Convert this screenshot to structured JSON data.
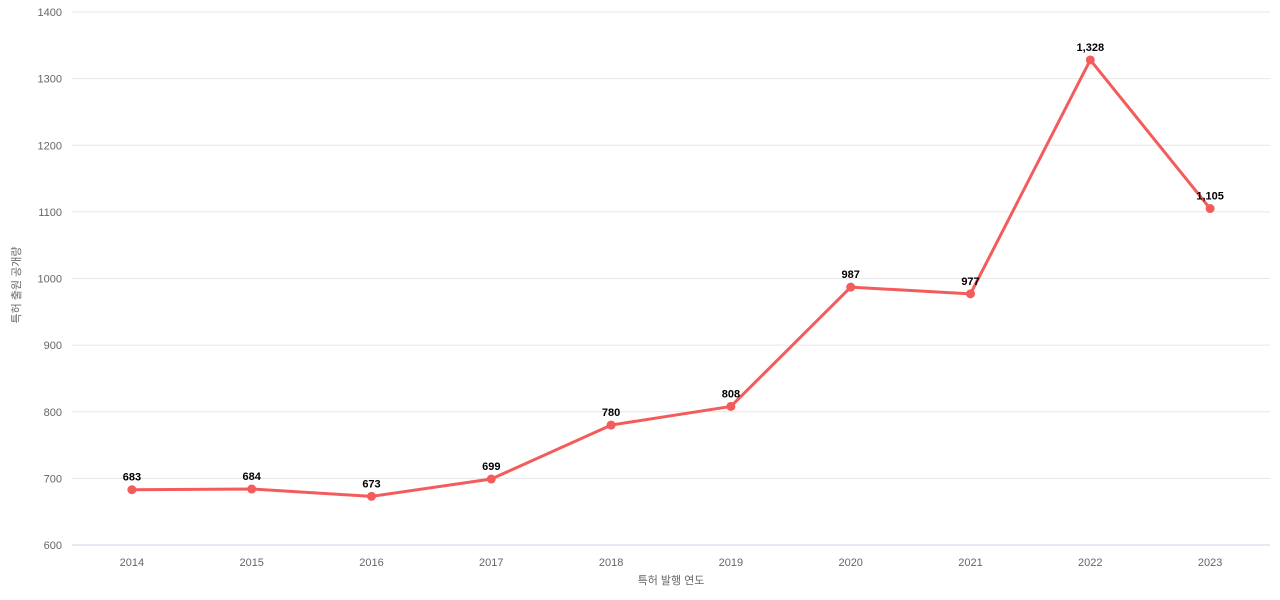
{
  "chart_data": {
    "type": "line",
    "title": "",
    "categories": [
      "2014",
      "2015",
      "2016",
      "2017",
      "2018",
      "2019",
      "2020",
      "2021",
      "2022",
      "2023"
    ],
    "values": [
      683,
      684,
      673,
      699,
      780,
      808,
      987,
      977,
      1328,
      1105
    ],
    "value_labels": [
      "683",
      "684",
      "673",
      "699",
      "780",
      "808",
      "987",
      "977",
      "1,328",
      "1,105"
    ],
    "xlabel": "특허 발행 연도",
    "ylabel": "특허 출원 공개량",
    "ylim": [
      600,
      1400
    ],
    "yticks": [
      600,
      700,
      800,
      900,
      1000,
      1100,
      1200,
      1300,
      1400
    ],
    "ytick_labels": [
      "600",
      "700",
      "800",
      "900",
      "1000",
      "1100",
      "1200",
      "1300",
      "1400"
    ],
    "grid": true,
    "legend": "none"
  },
  "colors": {
    "series": "#f45b5b",
    "grid_line": "#e6e6e6",
    "axis_line": "#ccd6eb",
    "tick_label": "#666666",
    "axis_title": "#666666",
    "data_label": "#000000",
    "background": "#ffffff"
  }
}
